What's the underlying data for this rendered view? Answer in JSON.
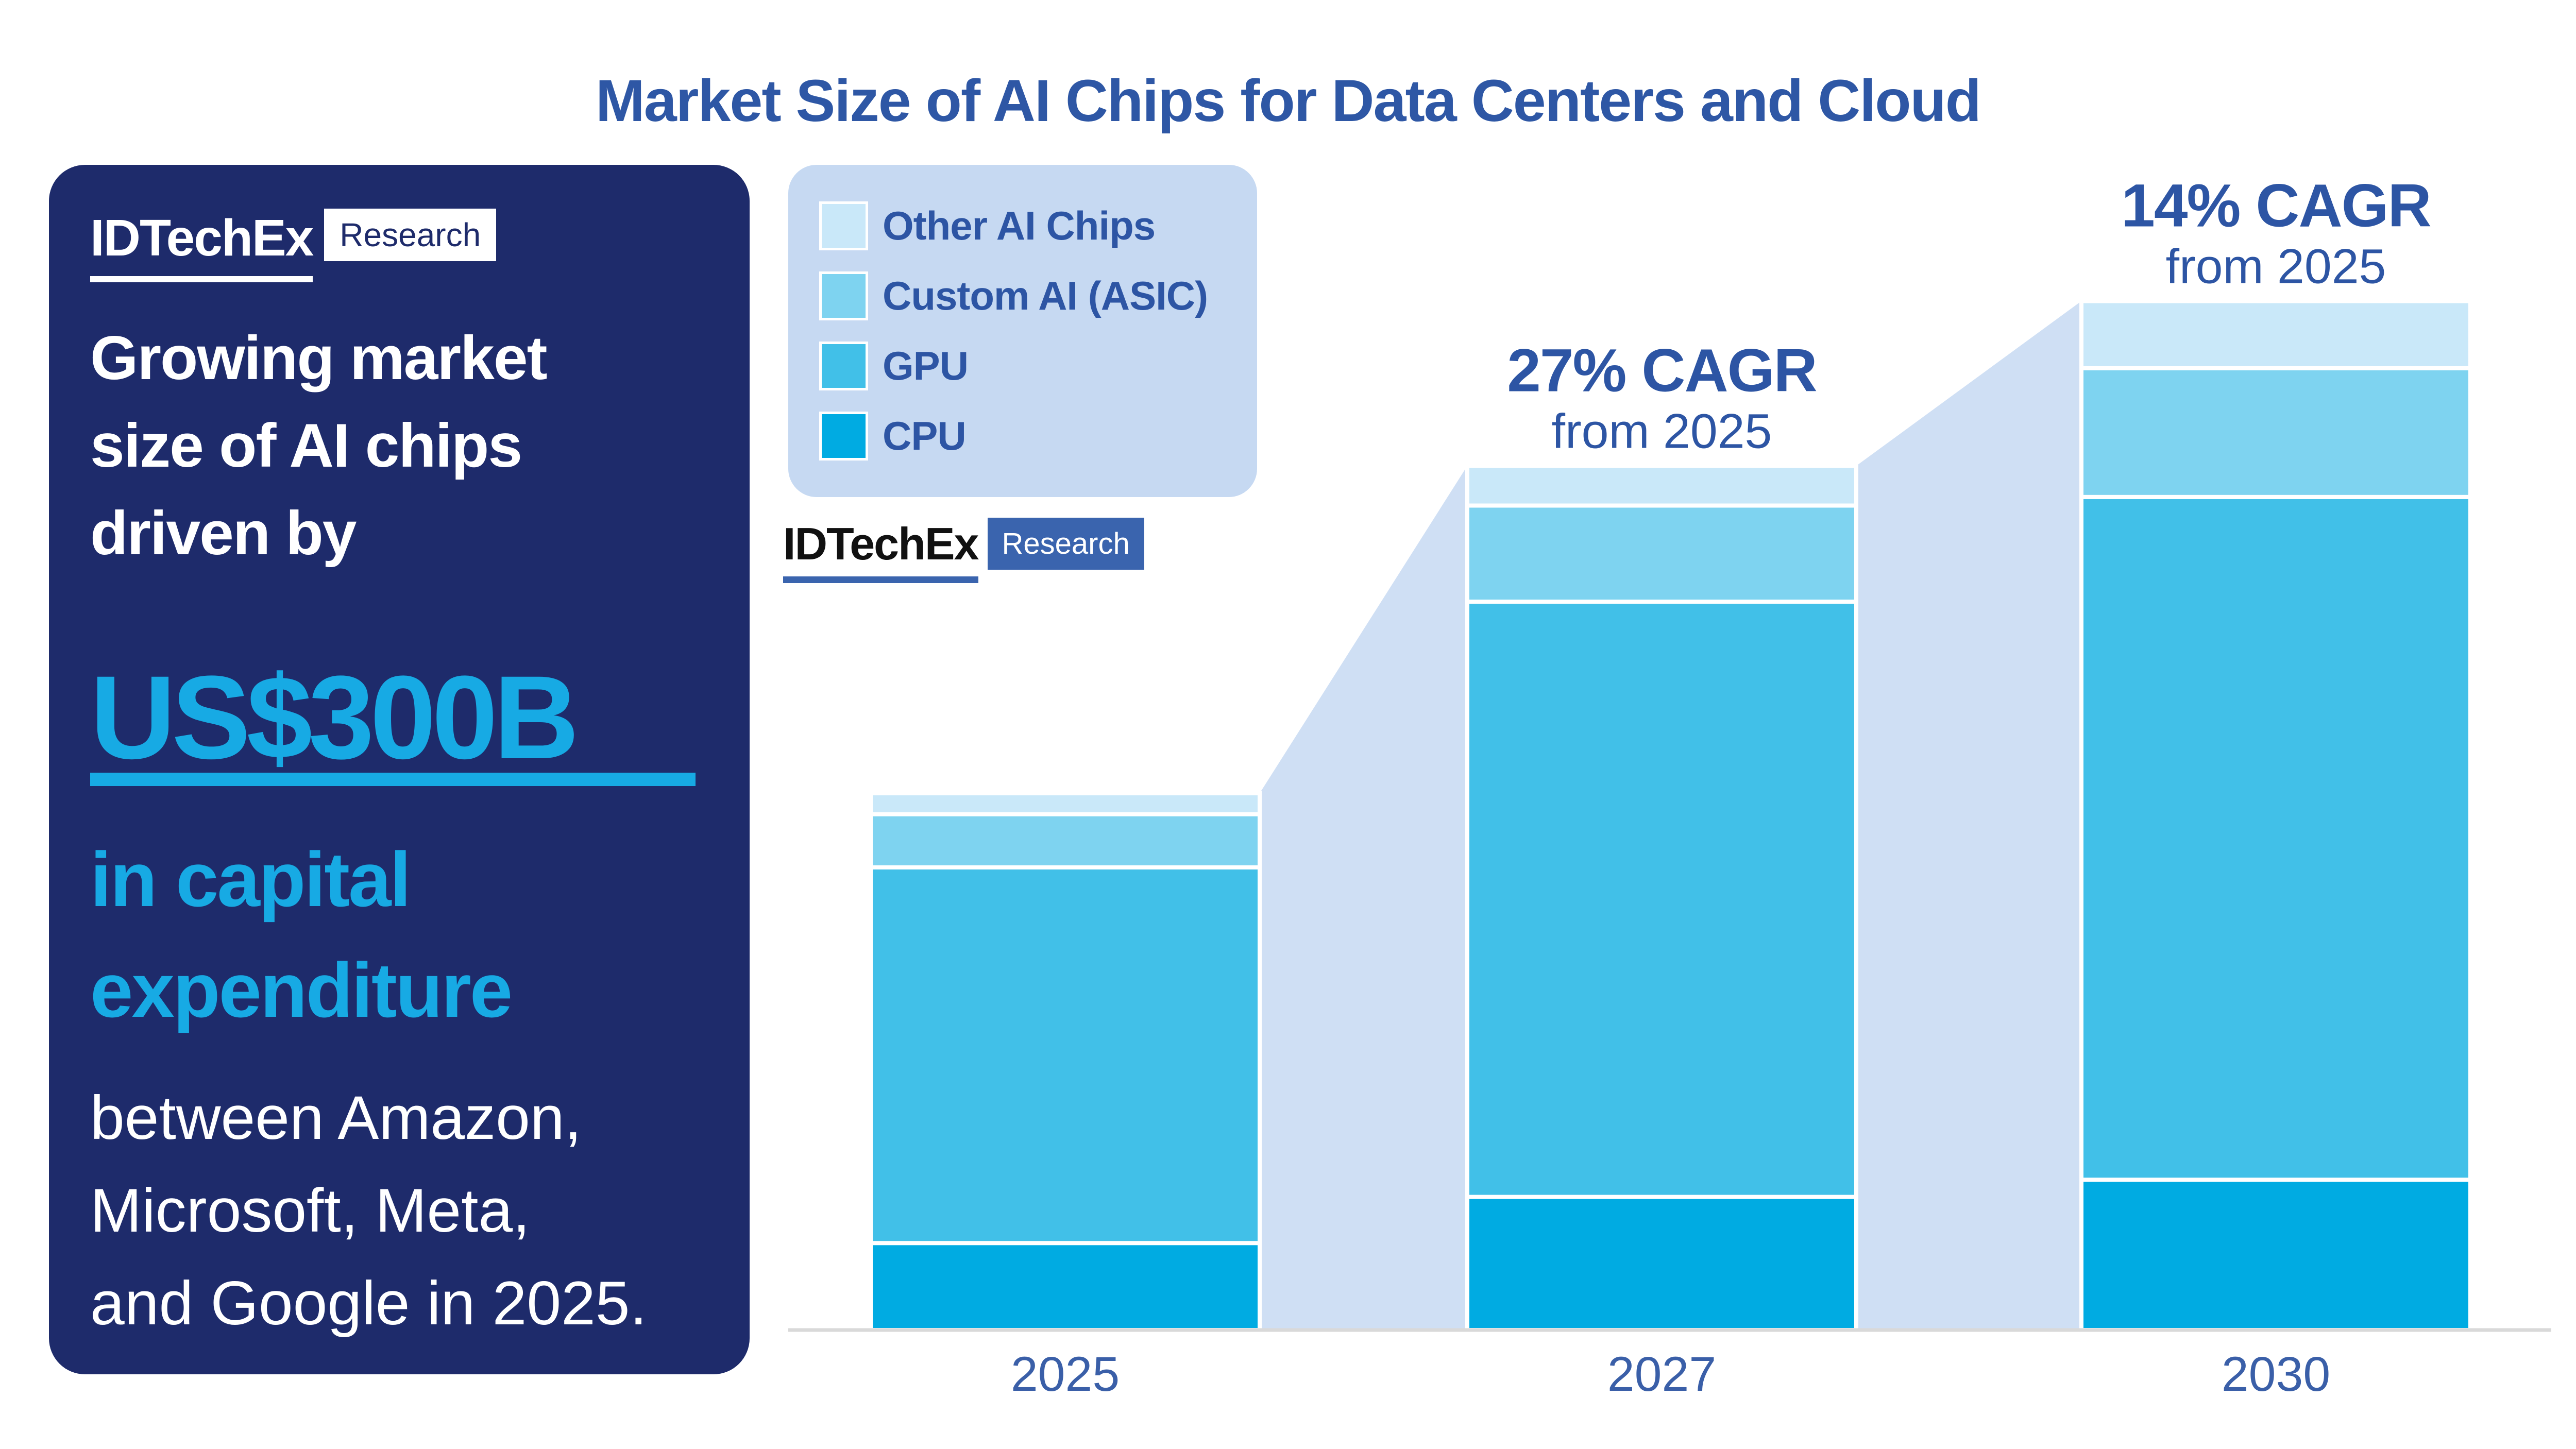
{
  "title": "Market Size of AI Chips for Data Centers and Cloud",
  "card": {
    "brand": "IDTechEx",
    "brand_suffix": "Research",
    "intro_lines": [
      "Growing market",
      "size of AI chips",
      "driven by"
    ],
    "highlight": "US$300B",
    "subhead_lines": [
      "in capital",
      "expenditure"
    ],
    "body_lines": [
      "between Amazon,",
      "Microsoft, Meta,",
      "and Google in 2025."
    ],
    "colors": {
      "background": "#1e2b6b",
      "accent": "#17aae4",
      "text": "#ffffff"
    }
  },
  "legend": {
    "background": "#c6d9f2",
    "label_color": "#2d55a4",
    "items": [
      {
        "label": "Other AI Chips",
        "color": "#c9e8f9"
      },
      {
        "label": "Custom AI (ASIC)",
        "color": "#7ed3f0"
      },
      {
        "label": "GPU",
        "color": "#41c0e8"
      },
      {
        "label": "CPU",
        "color": "#00abe2"
      }
    ]
  },
  "watermark": {
    "brand": "IDTechEx",
    "suffix": "Research",
    "box_color": "#3a64ae"
  },
  "chart_data": {
    "type": "bar",
    "stacked": true,
    "title": "Market Size of AI Chips for Data Centers and Cloud",
    "categories": [
      "2025",
      "2027",
      "2030"
    ],
    "series": [
      {
        "name": "CPU",
        "color": "#00abe2",
        "values": [
          16.2,
          24.8,
          28.0
        ]
      },
      {
        "name": "GPU",
        "color": "#41c0e8",
        "values": [
          70.0,
          110.9,
          127.2
        ]
      },
      {
        "name": "Custom AI (ASIC)",
        "color": "#7ed3f0",
        "values": [
          9.9,
          17.9,
          24.0
        ]
      },
      {
        "name": "Other AI Chips",
        "color": "#c9e8f9",
        "values": [
          3.9,
          7.4,
          12.5
        ]
      }
    ],
    "totals": [
      100,
      161,
      191.7
    ],
    "units": "indexed market size, 2025 total = 100 (chart shows no numeric axis; values estimated from bar heights)",
    "annotations": [
      {
        "category": "2027",
        "line1": "27% CAGR",
        "line2": "from 2025"
      },
      {
        "category": "2030",
        "line1": "14% CAGR",
        "line2": "from 2025"
      }
    ],
    "xlabel": "",
    "ylabel": "",
    "grid": false,
    "y_axis_visible": false,
    "legend_position": "top-left",
    "colors": {
      "ribbon": "#cfdff4",
      "axis_line": "#d9d9d9",
      "year_label": "#3a5fa8",
      "annotation": "#2d55a4"
    }
  }
}
